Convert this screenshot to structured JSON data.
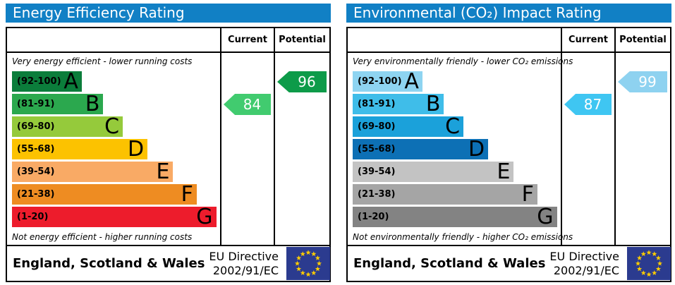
{
  "colors": {
    "header_bar_blue": "#1180c5",
    "eu_flag_blue": "#2b3b8f",
    "eu_star_yellow": "#ffcc00",
    "border_black": "#000000"
  },
  "panels": [
    {
      "title": "Energy Efficiency Rating",
      "columns": {
        "current": "Current",
        "potential": "Potential"
      },
      "top_note": "Very energy efficient - lower running costs",
      "bottom_note": "Not energy efficient - higher running costs",
      "bands": [
        {
          "range": "(92-100)",
          "letter": "A",
          "color": "#0b7d3b",
          "width_pct": 34
        },
        {
          "range": "(81-91)",
          "letter": "B",
          "color": "#2ba84e",
          "width_pct": 44.5
        },
        {
          "range": "(69-80)",
          "letter": "C",
          "color": "#95ca3b",
          "width_pct": 54
        },
        {
          "range": "(55-68)",
          "letter": "D",
          "color": "#fcc200",
          "width_pct": 66
        },
        {
          "range": "(39-54)",
          "letter": "E",
          "color": "#f9aa65",
          "width_pct": 78.5
        },
        {
          "range": "(21-38)",
          "letter": "F",
          "color": "#ee8c22",
          "width_pct": 90
        },
        {
          "range": "(1-20)",
          "letter": "G",
          "color": "#ed1c2c",
          "width_pct": 99.5
        }
      ],
      "current": {
        "value": "84",
        "band_row": 1,
        "color": "#41cb6f"
      },
      "potential": {
        "value": "96",
        "band_row": 0,
        "color": "#0d9b49"
      },
      "footer": {
        "region": "England, Scotland & Wales",
        "directive_line1": "EU Directive",
        "directive_line2": "2002/91/EC"
      }
    },
    {
      "title": "Environmental (CO₂) Impact Rating",
      "columns": {
        "current": "Current",
        "potential": "Potential"
      },
      "top_note": "Very environmentally friendly - lower CO₂ emissions",
      "bottom_note": "Not environmentally friendly - higher CO₂ emissions",
      "bands": [
        {
          "range": "(92-100)",
          "letter": "A",
          "color": "#8ed4f1",
          "width_pct": 34
        },
        {
          "range": "(81-91)",
          "letter": "B",
          "color": "#3fbde9",
          "width_pct": 44.5
        },
        {
          "range": "(69-80)",
          "letter": "C",
          "color": "#1ba1da",
          "width_pct": 54
        },
        {
          "range": "(55-68)",
          "letter": "D",
          "color": "#0d70b5",
          "width_pct": 66
        },
        {
          "range": "(39-54)",
          "letter": "E",
          "color": "#c3c3c3",
          "width_pct": 78.5
        },
        {
          "range": "(21-38)",
          "letter": "F",
          "color": "#a5a5a5",
          "width_pct": 90
        },
        {
          "range": "(1-20)",
          "letter": "G",
          "color": "#838383",
          "width_pct": 99.5
        }
      ],
      "current": {
        "value": "87",
        "band_row": 1,
        "color": "#3fc6f2"
      },
      "potential": {
        "value": "99",
        "band_row": 0,
        "color": "#8ed2f0"
      },
      "footer": {
        "region": "England, Scotland & Wales",
        "directive_line1": "EU Directive",
        "directive_line2": "2002/91/EC"
      }
    }
  ],
  "chart_data": [
    {
      "type": "bar",
      "title": "Energy Efficiency Rating",
      "categories": [
        "A (92-100)",
        "B (81-91)",
        "C (69-80)",
        "D (55-68)",
        "E (39-54)",
        "F (21-38)",
        "G (1-20)"
      ],
      "band_ranges": [
        [
          92,
          100
        ],
        [
          81,
          91
        ],
        [
          69,
          80
        ],
        [
          55,
          68
        ],
        [
          39,
          54
        ],
        [
          21,
          38
        ],
        [
          1,
          20
        ]
      ],
      "current_rating": 84,
      "current_band": "B",
      "potential_rating": 96,
      "potential_band": "A",
      "top_annotation": "Very energy efficient - lower running costs",
      "bottom_annotation": "Not energy efficient - higher running costs",
      "region": "England, Scotland & Wales",
      "directive": "EU Directive 2002/91/EC",
      "xlim": [
        0,
        100
      ]
    },
    {
      "type": "bar",
      "title": "Environmental (CO₂) Impact Rating",
      "categories": [
        "A (92-100)",
        "B (81-91)",
        "C (69-80)",
        "D (55-68)",
        "E (39-54)",
        "F (21-38)",
        "G (1-20)"
      ],
      "band_ranges": [
        [
          92,
          100
        ],
        [
          81,
          91
        ],
        [
          69,
          80
        ],
        [
          55,
          68
        ],
        [
          39,
          54
        ],
        [
          21,
          38
        ],
        [
          1,
          20
        ]
      ],
      "current_rating": 87,
      "current_band": "B",
      "potential_rating": 99,
      "potential_band": "A",
      "top_annotation": "Very environmentally friendly - lower CO₂ emissions",
      "bottom_annotation": "Not environmentally friendly - higher CO₂ emissions",
      "region": "England, Scotland & Wales",
      "directive": "EU Directive 2002/91/EC",
      "xlim": [
        0,
        100
      ]
    }
  ]
}
